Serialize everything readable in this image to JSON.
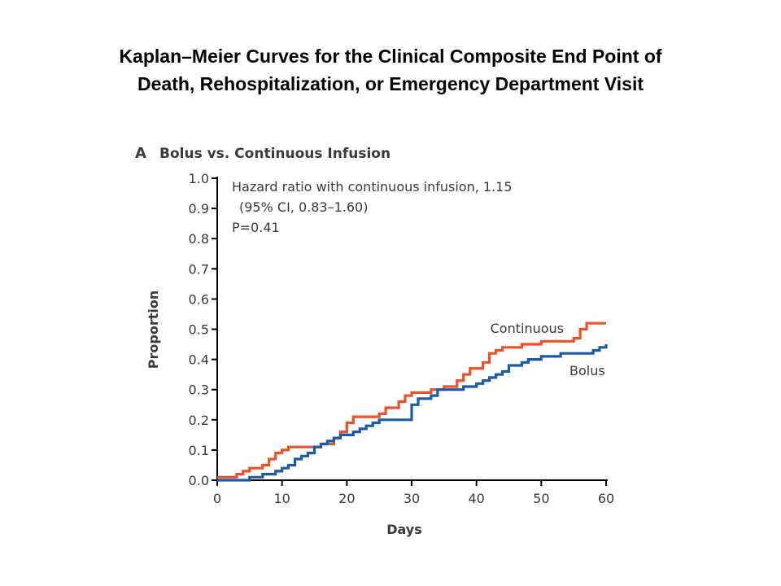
{
  "slide": {
    "title_line1": "Kaplan–Meier Curves for the Clinical Composite End Point of",
    "title_line2": "Death, Rehospitalization, or Emergency Department Visit"
  },
  "panel": {
    "letter": "A",
    "title": "Bolus vs. Continuous Infusion"
  },
  "annotation": {
    "line1": "Hazard ratio with continuous infusion, 1.15",
    "line2": "(95% CI, 0.83–1.60)",
    "line3": "P=0.41"
  },
  "colors": {
    "continuous": "#e8532b",
    "bolus": "#1c5aa8",
    "axis": "#000000",
    "text": "#3a3a3a"
  },
  "chart_data": {
    "type": "line",
    "step": true,
    "xlabel": "Days",
    "ylabel": "Proportion",
    "xlim": [
      0,
      60
    ],
    "ylim": [
      0,
      1
    ],
    "x_ticks": [
      0,
      10,
      20,
      30,
      40,
      50,
      60
    ],
    "y_ticks": [
      "0.0",
      "0.1",
      "0.2",
      "0.3",
      "0.4",
      "0.5",
      "0.6",
      "0.7",
      "0.8",
      "0.9",
      "1.0"
    ],
    "grid": false,
    "series": [
      {
        "name": "Continuous",
        "color": "#e8532b",
        "points": [
          [
            0,
            0.01
          ],
          [
            3,
            0.02
          ],
          [
            4,
            0.03
          ],
          [
            5,
            0.04
          ],
          [
            7,
            0.05
          ],
          [
            8,
            0.07
          ],
          [
            9,
            0.09
          ],
          [
            10,
            0.1
          ],
          [
            11,
            0.11
          ],
          [
            15,
            0.11
          ],
          [
            16,
            0.12
          ],
          [
            18,
            0.14
          ],
          [
            19,
            0.16
          ],
          [
            20,
            0.19
          ],
          [
            21,
            0.21
          ],
          [
            25,
            0.22
          ],
          [
            26,
            0.24
          ],
          [
            28,
            0.26
          ],
          [
            29,
            0.28
          ],
          [
            30,
            0.29
          ],
          [
            33,
            0.3
          ],
          [
            35,
            0.31
          ],
          [
            37,
            0.33
          ],
          [
            38,
            0.35
          ],
          [
            39,
            0.37
          ],
          [
            41,
            0.39
          ],
          [
            42,
            0.42
          ],
          [
            43,
            0.43
          ],
          [
            44,
            0.44
          ],
          [
            47,
            0.45
          ],
          [
            50,
            0.46
          ],
          [
            55,
            0.47
          ],
          [
            56,
            0.5
          ],
          [
            57,
            0.52
          ],
          [
            60,
            0.52
          ]
        ]
      },
      {
        "name": "Bolus",
        "color": "#1c5aa8",
        "points": [
          [
            0,
            0
          ],
          [
            5,
            0.01
          ],
          [
            7,
            0.02
          ],
          [
            9,
            0.03
          ],
          [
            10,
            0.04
          ],
          [
            11,
            0.05
          ],
          [
            12,
            0.07
          ],
          [
            13,
            0.08
          ],
          [
            14,
            0.09
          ],
          [
            15,
            0.11
          ],
          [
            16,
            0.12
          ],
          [
            17,
            0.13
          ],
          [
            18,
            0.14
          ],
          [
            19,
            0.15
          ],
          [
            20,
            0.15
          ],
          [
            21,
            0.16
          ],
          [
            22,
            0.17
          ],
          [
            23,
            0.18
          ],
          [
            24,
            0.19
          ],
          [
            25,
            0.2
          ],
          [
            29,
            0.2
          ],
          [
            30,
            0.25
          ],
          [
            31,
            0.27
          ],
          [
            33,
            0.28
          ],
          [
            34,
            0.3
          ],
          [
            38,
            0.31
          ],
          [
            40,
            0.32
          ],
          [
            41,
            0.33
          ],
          [
            42,
            0.34
          ],
          [
            43,
            0.35
          ],
          [
            44,
            0.36
          ],
          [
            45,
            0.38
          ],
          [
            47,
            0.39
          ],
          [
            48,
            0.4
          ],
          [
            50,
            0.41
          ],
          [
            53,
            0.42
          ],
          [
            58,
            0.43
          ],
          [
            59,
            0.44
          ],
          [
            60,
            0.45
          ]
        ]
      }
    ],
    "labels": {
      "continuous": "Continuous",
      "bolus": "Bolus"
    }
  }
}
